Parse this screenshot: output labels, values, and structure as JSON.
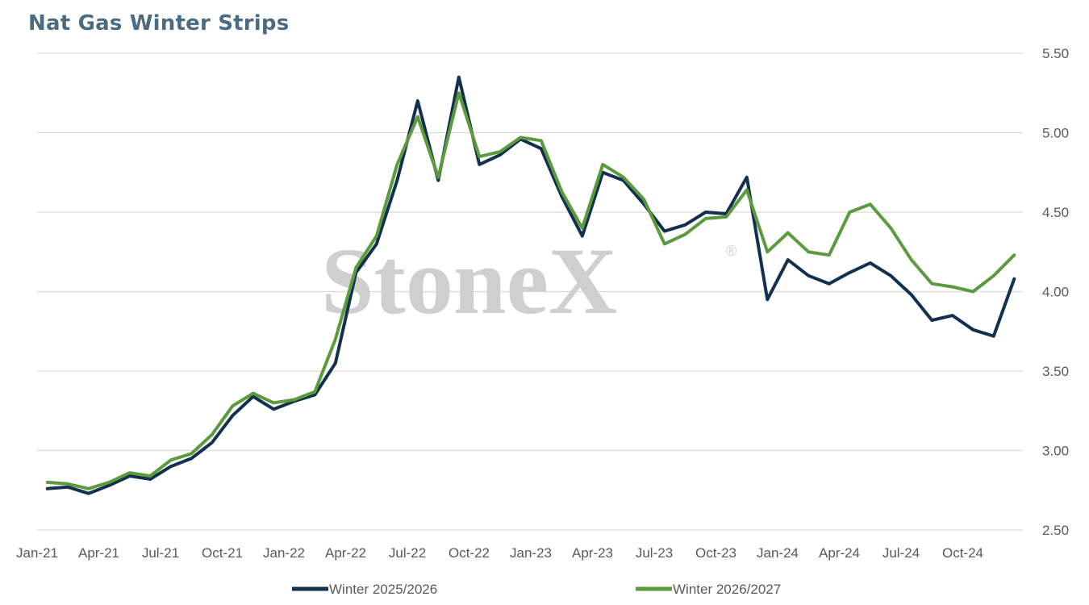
{
  "chart_data": {
    "type": "line",
    "title": "Nat Gas Winter Strips",
    "watermark": "StoneX",
    "watermark_mark": "®",
    "x_ticks": [
      "Jan-21",
      "Apr-21",
      "Jul-21",
      "Oct-21",
      "Jan-22",
      "Apr-22",
      "Jul-22",
      "Oct-22",
      "Jan-23",
      "Apr-23",
      "Jul-23",
      "Oct-23",
      "Jan-24",
      "Apr-24",
      "Jul-24",
      "Oct-24"
    ],
    "y_ticks": [
      "2.50",
      "3.00",
      "3.50",
      "4.00",
      "4.50",
      "5.00",
      "5.50"
    ],
    "ylim": [
      2.5,
      5.5
    ],
    "xlim": [
      "2021-01",
      "2024-12"
    ],
    "grid": true,
    "y_axis_side": "right",
    "legend_position": "bottom",
    "x": [
      "2021-01",
      "2021-02",
      "2021-03",
      "2021-04",
      "2021-05",
      "2021-06",
      "2021-07",
      "2021-08",
      "2021-09",
      "2021-10",
      "2021-11",
      "2021-12",
      "2022-01",
      "2022-02",
      "2022-03",
      "2022-04",
      "2022-05",
      "2022-06",
      "2022-07",
      "2022-08",
      "2022-09",
      "2022-10",
      "2022-11",
      "2022-12",
      "2023-01",
      "2023-02",
      "2023-03",
      "2023-04",
      "2023-05",
      "2023-06",
      "2023-07",
      "2023-08",
      "2023-09",
      "2023-10",
      "2023-11",
      "2023-12",
      "2024-01",
      "2024-02",
      "2024-03",
      "2024-04",
      "2024-05",
      "2024-06",
      "2024-07",
      "2024-08",
      "2024-09",
      "2024-10",
      "2024-11",
      "2024-12"
    ],
    "series": [
      {
        "name": "Winter 2025/2026",
        "color": "#13304f",
        "values": [
          2.76,
          2.77,
          2.73,
          2.78,
          2.84,
          2.82,
          2.9,
          2.95,
          3.05,
          3.22,
          3.34,
          3.26,
          3.31,
          3.35,
          3.55,
          4.12,
          4.3,
          4.7,
          5.2,
          4.7,
          5.35,
          4.8,
          4.86,
          4.96,
          4.9,
          4.6,
          4.35,
          4.75,
          4.7,
          4.55,
          4.38,
          4.42,
          4.5,
          4.49,
          4.72,
          3.95,
          4.2,
          4.1,
          4.05,
          4.12,
          4.18,
          4.1,
          3.98,
          3.82,
          3.85,
          3.76,
          3.72,
          4.08
        ]
      },
      {
        "name": "Winter 2026/2027",
        "color": "#5b9b3e",
        "values": [
          2.8,
          2.79,
          2.76,
          2.8,
          2.86,
          2.84,
          2.94,
          2.98,
          3.1,
          3.28,
          3.36,
          3.3,
          3.32,
          3.37,
          3.7,
          4.15,
          4.35,
          4.8,
          5.1,
          4.72,
          5.25,
          4.85,
          4.88,
          4.97,
          4.95,
          4.63,
          4.4,
          4.8,
          4.72,
          4.58,
          4.3,
          4.36,
          4.46,
          4.47,
          4.64,
          4.25,
          4.37,
          4.25,
          4.23,
          4.5,
          4.55,
          4.4,
          4.2,
          4.05,
          4.03,
          4.0,
          4.1,
          4.23
        ]
      }
    ]
  }
}
